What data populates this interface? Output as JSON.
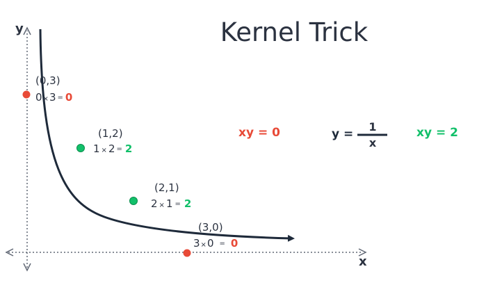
{
  "title": "Kernel Trick",
  "axes": {
    "x_label": "x",
    "y_label": "y"
  },
  "colors": {
    "red": "#e84a37",
    "green": "#12c06a",
    "dark": "#1e2a3a",
    "axis": "#5f6673"
  },
  "points": [
    {
      "id": "p03",
      "coord": "(0,3)",
      "a": "0",
      "b": "3",
      "times": "×",
      "eq": "=",
      "result": "0",
      "color": "red"
    },
    {
      "id": "p12",
      "coord": "(1,2)",
      "a": "1",
      "b": "2",
      "times": "×",
      "eq": "=",
      "result": "2",
      "color": "green"
    },
    {
      "id": "p21",
      "coord": "(2,1)",
      "a": "2",
      "b": "1",
      "times": "×",
      "eq": "=",
      "result": "2",
      "color": "green"
    },
    {
      "id": "p30",
      "coord": "(3,0)",
      "a": "3",
      "b": "0",
      "times": "×",
      "eq": "=",
      "result": "0",
      "color": "red"
    }
  ],
  "equations": {
    "left": "xy = 0",
    "middle_lhs": "y =",
    "middle_num": "1",
    "middle_den": "x",
    "right": "xy = 2"
  }
}
